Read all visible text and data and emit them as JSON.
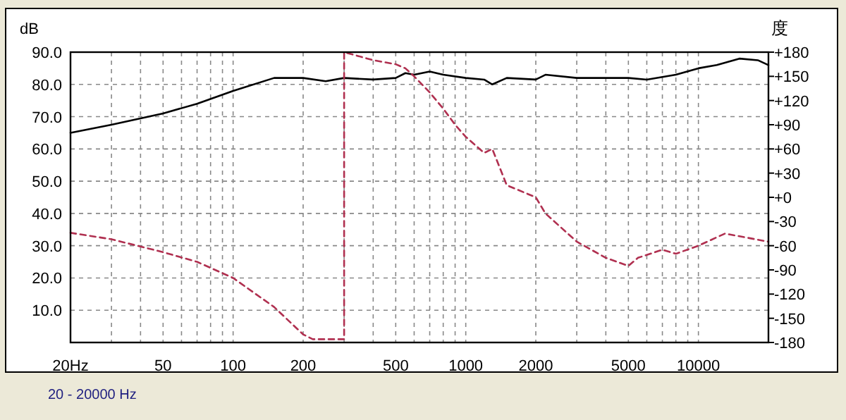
{
  "chart_data": {
    "type": "line",
    "ylabel": "dB",
    "y2label": "度",
    "log": "x",
    "grid": true,
    "xlim": [
      20,
      20000
    ],
    "xticks": [
      {
        "value": 20,
        "label": "20Hz"
      },
      {
        "value": 30,
        "label": null
      },
      {
        "value": 40,
        "label": null
      },
      {
        "value": 50,
        "label": "50"
      },
      {
        "value": 60,
        "label": null
      },
      {
        "value": 70,
        "label": null
      },
      {
        "value": 80,
        "label": null
      },
      {
        "value": 90,
        "label": null
      },
      {
        "value": 100,
        "label": "100"
      },
      {
        "value": 200,
        "label": "200"
      },
      {
        "value": 300,
        "label": null
      },
      {
        "value": 400,
        "label": null
      },
      {
        "value": 500,
        "label": "500"
      },
      {
        "value": 600,
        "label": null
      },
      {
        "value": 700,
        "label": null
      },
      {
        "value": 800,
        "label": null
      },
      {
        "value": 900,
        "label": null
      },
      {
        "value": 1000,
        "label": "1000"
      },
      {
        "value": 2000,
        "label": "2000"
      },
      {
        "value": 3000,
        "label": null
      },
      {
        "value": 4000,
        "label": null
      },
      {
        "value": 5000,
        "label": "5000"
      },
      {
        "value": 6000,
        "label": null
      },
      {
        "value": 7000,
        "label": null
      },
      {
        "value": 8000,
        "label": null
      },
      {
        "value": 9000,
        "label": null
      },
      {
        "value": 10000,
        "label": "10000"
      }
    ],
    "ylim": [
      0,
      90
    ],
    "yticks": [
      {
        "value": 0,
        "label": null
      },
      {
        "value": 10,
        "label": "10.0"
      },
      {
        "value": 20,
        "label": "20.0"
      },
      {
        "value": 30,
        "label": "30.0"
      },
      {
        "value": 40,
        "label": "40.0"
      },
      {
        "value": 50,
        "label": "50.0"
      },
      {
        "value": 60,
        "label": "60.0"
      },
      {
        "value": 70,
        "label": "70.0"
      },
      {
        "value": 80,
        "label": "80.0"
      },
      {
        "value": 90,
        "label": "90.0"
      }
    ],
    "y2lim": [
      -180,
      180
    ],
    "y2ticks": [
      {
        "value": -180,
        "label": "-180"
      },
      {
        "value": -150,
        "label": "-150"
      },
      {
        "value": -120,
        "label": "-120"
      },
      {
        "value": -90,
        "label": "-90"
      },
      {
        "value": -60,
        "label": "-60"
      },
      {
        "value": -30,
        "label": "-30"
      },
      {
        "value": 0,
        "label": "+0"
      },
      {
        "value": 30,
        "label": "+30"
      },
      {
        "value": 60,
        "label": "+60"
      },
      {
        "value": 90,
        "label": "+90"
      },
      {
        "value": 120,
        "label": "+120"
      },
      {
        "value": 150,
        "label": "+150"
      },
      {
        "value": 180,
        "label": "+180"
      }
    ],
    "annotations": [
      "20 - 20000 Hz"
    ],
    "series": [
      {
        "color": "#000000",
        "line_style": "solid",
        "x": [
          20,
          30,
          50,
          70,
          100,
          150,
          200,
          250,
          300,
          400,
          500,
          550,
          600,
          700,
          800,
          1000,
          1200,
          1300,
          1500,
          2000,
          2200,
          3000,
          4000,
          5000,
          6000,
          8000,
          10000,
          12000,
          15000,
          18000,
          20000
        ],
        "values": [
          65,
          67.5,
          71,
          74,
          78,
          82,
          82,
          81,
          82,
          81.5,
          82,
          83.5,
          83,
          84,
          83,
          82,
          81.5,
          80,
          82,
          81.5,
          83,
          82,
          82,
          82,
          81.5,
          83,
          85,
          86,
          88,
          87.5,
          86
        ]
      },
      {
        "color": "#b03050",
        "line_style": "dashed",
        "axis": "y2",
        "x": [
          20,
          30,
          50,
          70,
          100,
          150,
          200,
          220,
          300,
          300,
          400,
          500,
          550,
          600,
          700,
          800,
          900,
          1000,
          1200,
          1300,
          1500,
          2000,
          2200,
          3000,
          4000,
          5000,
          5500,
          7000,
          8000,
          10000,
          13000,
          20000
        ],
        "values": [
          -44,
          -52,
          -68,
          -80,
          -100,
          -136,
          -170,
          -176,
          -176,
          180,
          170,
          165,
          160,
          150,
          130,
          110,
          90,
          75,
          55,
          60,
          15,
          0,
          -20,
          -55,
          -75,
          -85,
          -75,
          -65,
          -70,
          -60,
          -45,
          -55
        ]
      }
    ]
  }
}
